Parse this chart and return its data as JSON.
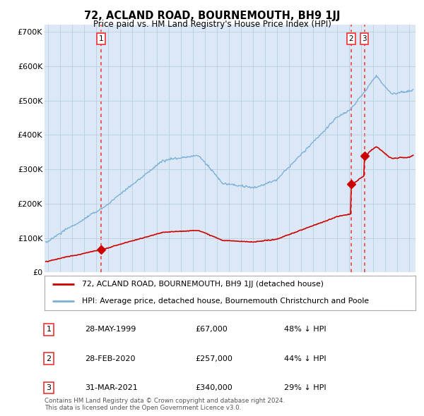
{
  "title": "72, ACLAND ROAD, BOURNEMOUTH, BH9 1JJ",
  "subtitle": "Price paid vs. HM Land Registry's House Price Index (HPI)",
  "background_color": "#ffffff",
  "plot_bg_color": "#dce8f5",
  "ylabel_ticks": [
    "£0",
    "£100K",
    "£200K",
    "£300K",
    "£400K",
    "£500K",
    "£600K",
    "£700K"
  ],
  "ytick_values": [
    0,
    100000,
    200000,
    300000,
    400000,
    500000,
    600000,
    700000
  ],
  "ylim": [
    0,
    720000
  ],
  "xlim_start": 1994.7,
  "xlim_end": 2025.5,
  "sale_dates": [
    1999.38,
    2020.16,
    2021.25
  ],
  "sale_prices": [
    67000,
    257000,
    340000
  ],
  "sale_labels": [
    "1",
    "2",
    "3"
  ],
  "vline_color": "#ee3333",
  "legend_label_red": "72, ACLAND ROAD, BOURNEMOUTH, BH9 1JJ (detached house)",
  "legend_label_blue": "HPI: Average price, detached house, Bournemouth Christchurch and Poole",
  "table_data": [
    [
      "1",
      "28-MAY-1999",
      "£67,000",
      "48% ↓ HPI"
    ],
    [
      "2",
      "28-FEB-2020",
      "£257,000",
      "44% ↓ HPI"
    ],
    [
      "3",
      "31-MAR-2021",
      "£340,000",
      "29% ↓ HPI"
    ]
  ],
  "footnote1": "Contains HM Land Registry data © Crown copyright and database right 2024.",
  "footnote2": "This data is licensed under the Open Government Licence v3.0.",
  "red_line_color": "#cc0000",
  "hpi_line_color": "#7ab0d8",
  "grid_color": "#b8cfe0"
}
